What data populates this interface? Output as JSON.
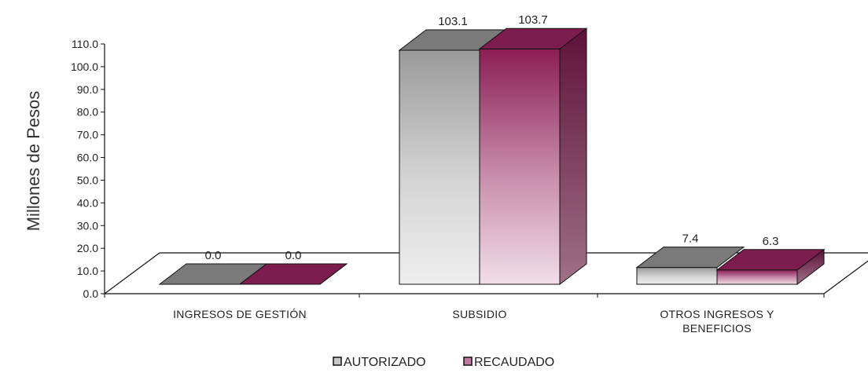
{
  "chart_data": {
    "type": "bar",
    "style": "3d-clustered-column",
    "title": "",
    "xlabel": "",
    "ylabel": "Millones de Pesos",
    "ylim": [
      0,
      110
    ],
    "yticks": [
      "0.0",
      "10.0",
      "20.0",
      "30.0",
      "40.0",
      "50.0",
      "60.0",
      "70.0",
      "80.0",
      "90.0",
      "100.0",
      "110.0"
    ],
    "categories": [
      [
        "INGRESOS DE GESTIÓN"
      ],
      [
        "SUBSIDIO"
      ],
      [
        "OTROS INGRESOS Y",
        "BENEFICIOS"
      ]
    ],
    "series": [
      {
        "name": "AUTORIZADO",
        "values": [
          0.0,
          103.1,
          7.4
        ],
        "labels": [
          "0.0",
          "103.1",
          "7.4"
        ],
        "color": "#7a7a7a"
      },
      {
        "name": "RECAUDADO",
        "values": [
          0.0,
          103.7,
          6.3
        ],
        "labels": [
          "0.0",
          "103.7",
          "6.3"
        ],
        "color": "#7d1d4f"
      }
    ],
    "grid": false,
    "legend": "bottom"
  }
}
